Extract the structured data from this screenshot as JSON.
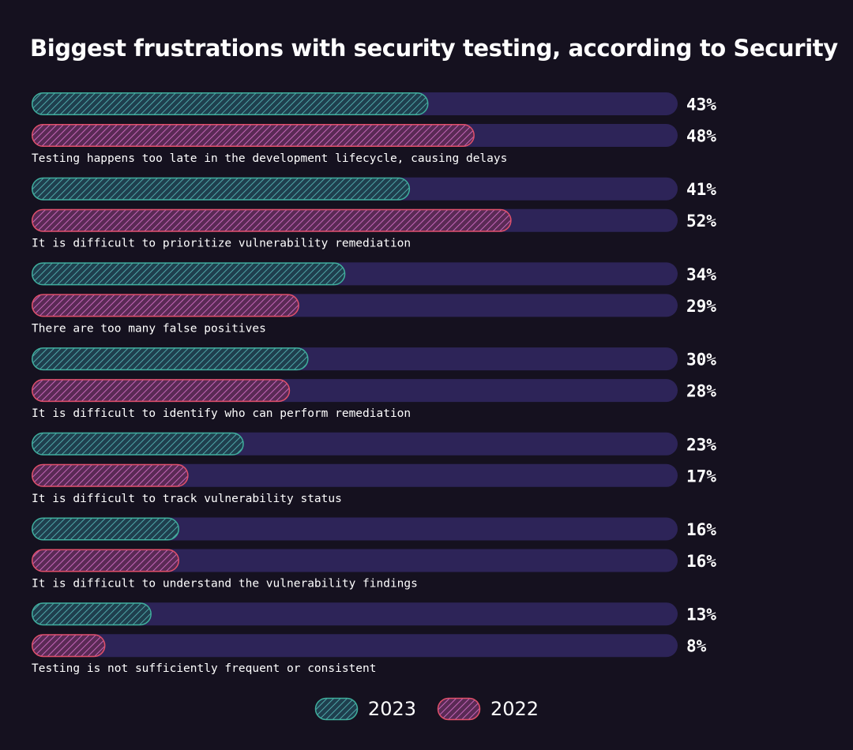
{
  "chart_data": {
    "type": "bar",
    "orientation": "horizontal",
    "title": "Biggest frustrations with security testing, according to Security",
    "categories": [
      "Testing happens too late in the development lifecycle, causing delays",
      "It is difficult to prioritize vulnerability remediation",
      "There are too many false positives",
      "It is difficult to identify who can perform remediation",
      "It is difficult to track vulnerability status",
      "It is difficult to understand the vulnerability findings",
      "Testing is not sufficiently frequent or consistent"
    ],
    "series": [
      {
        "name": "2023",
        "values": [
          43,
          41,
          34,
          30,
          23,
          16,
          13
        ]
      },
      {
        "name": "2022",
        "values": [
          48,
          52,
          29,
          28,
          17,
          16,
          8
        ]
      }
    ],
    "value_suffix": "%",
    "xlim": [
      0,
      70
    ],
    "legend_position": "bottom-center",
    "grid": false,
    "colors": {
      "background": "#15111f",
      "track": "#2d2458",
      "series_2023_stroke": "#3fae9c",
      "series_2023_fill": "#1f3f4e",
      "series_2023_hatch": "#4fa6a8",
      "series_2022_stroke": "#e0506a",
      "series_2022_fill": "#5a2a55",
      "series_2022_hatch": "#c466b8",
      "text": "#ffffff"
    }
  }
}
